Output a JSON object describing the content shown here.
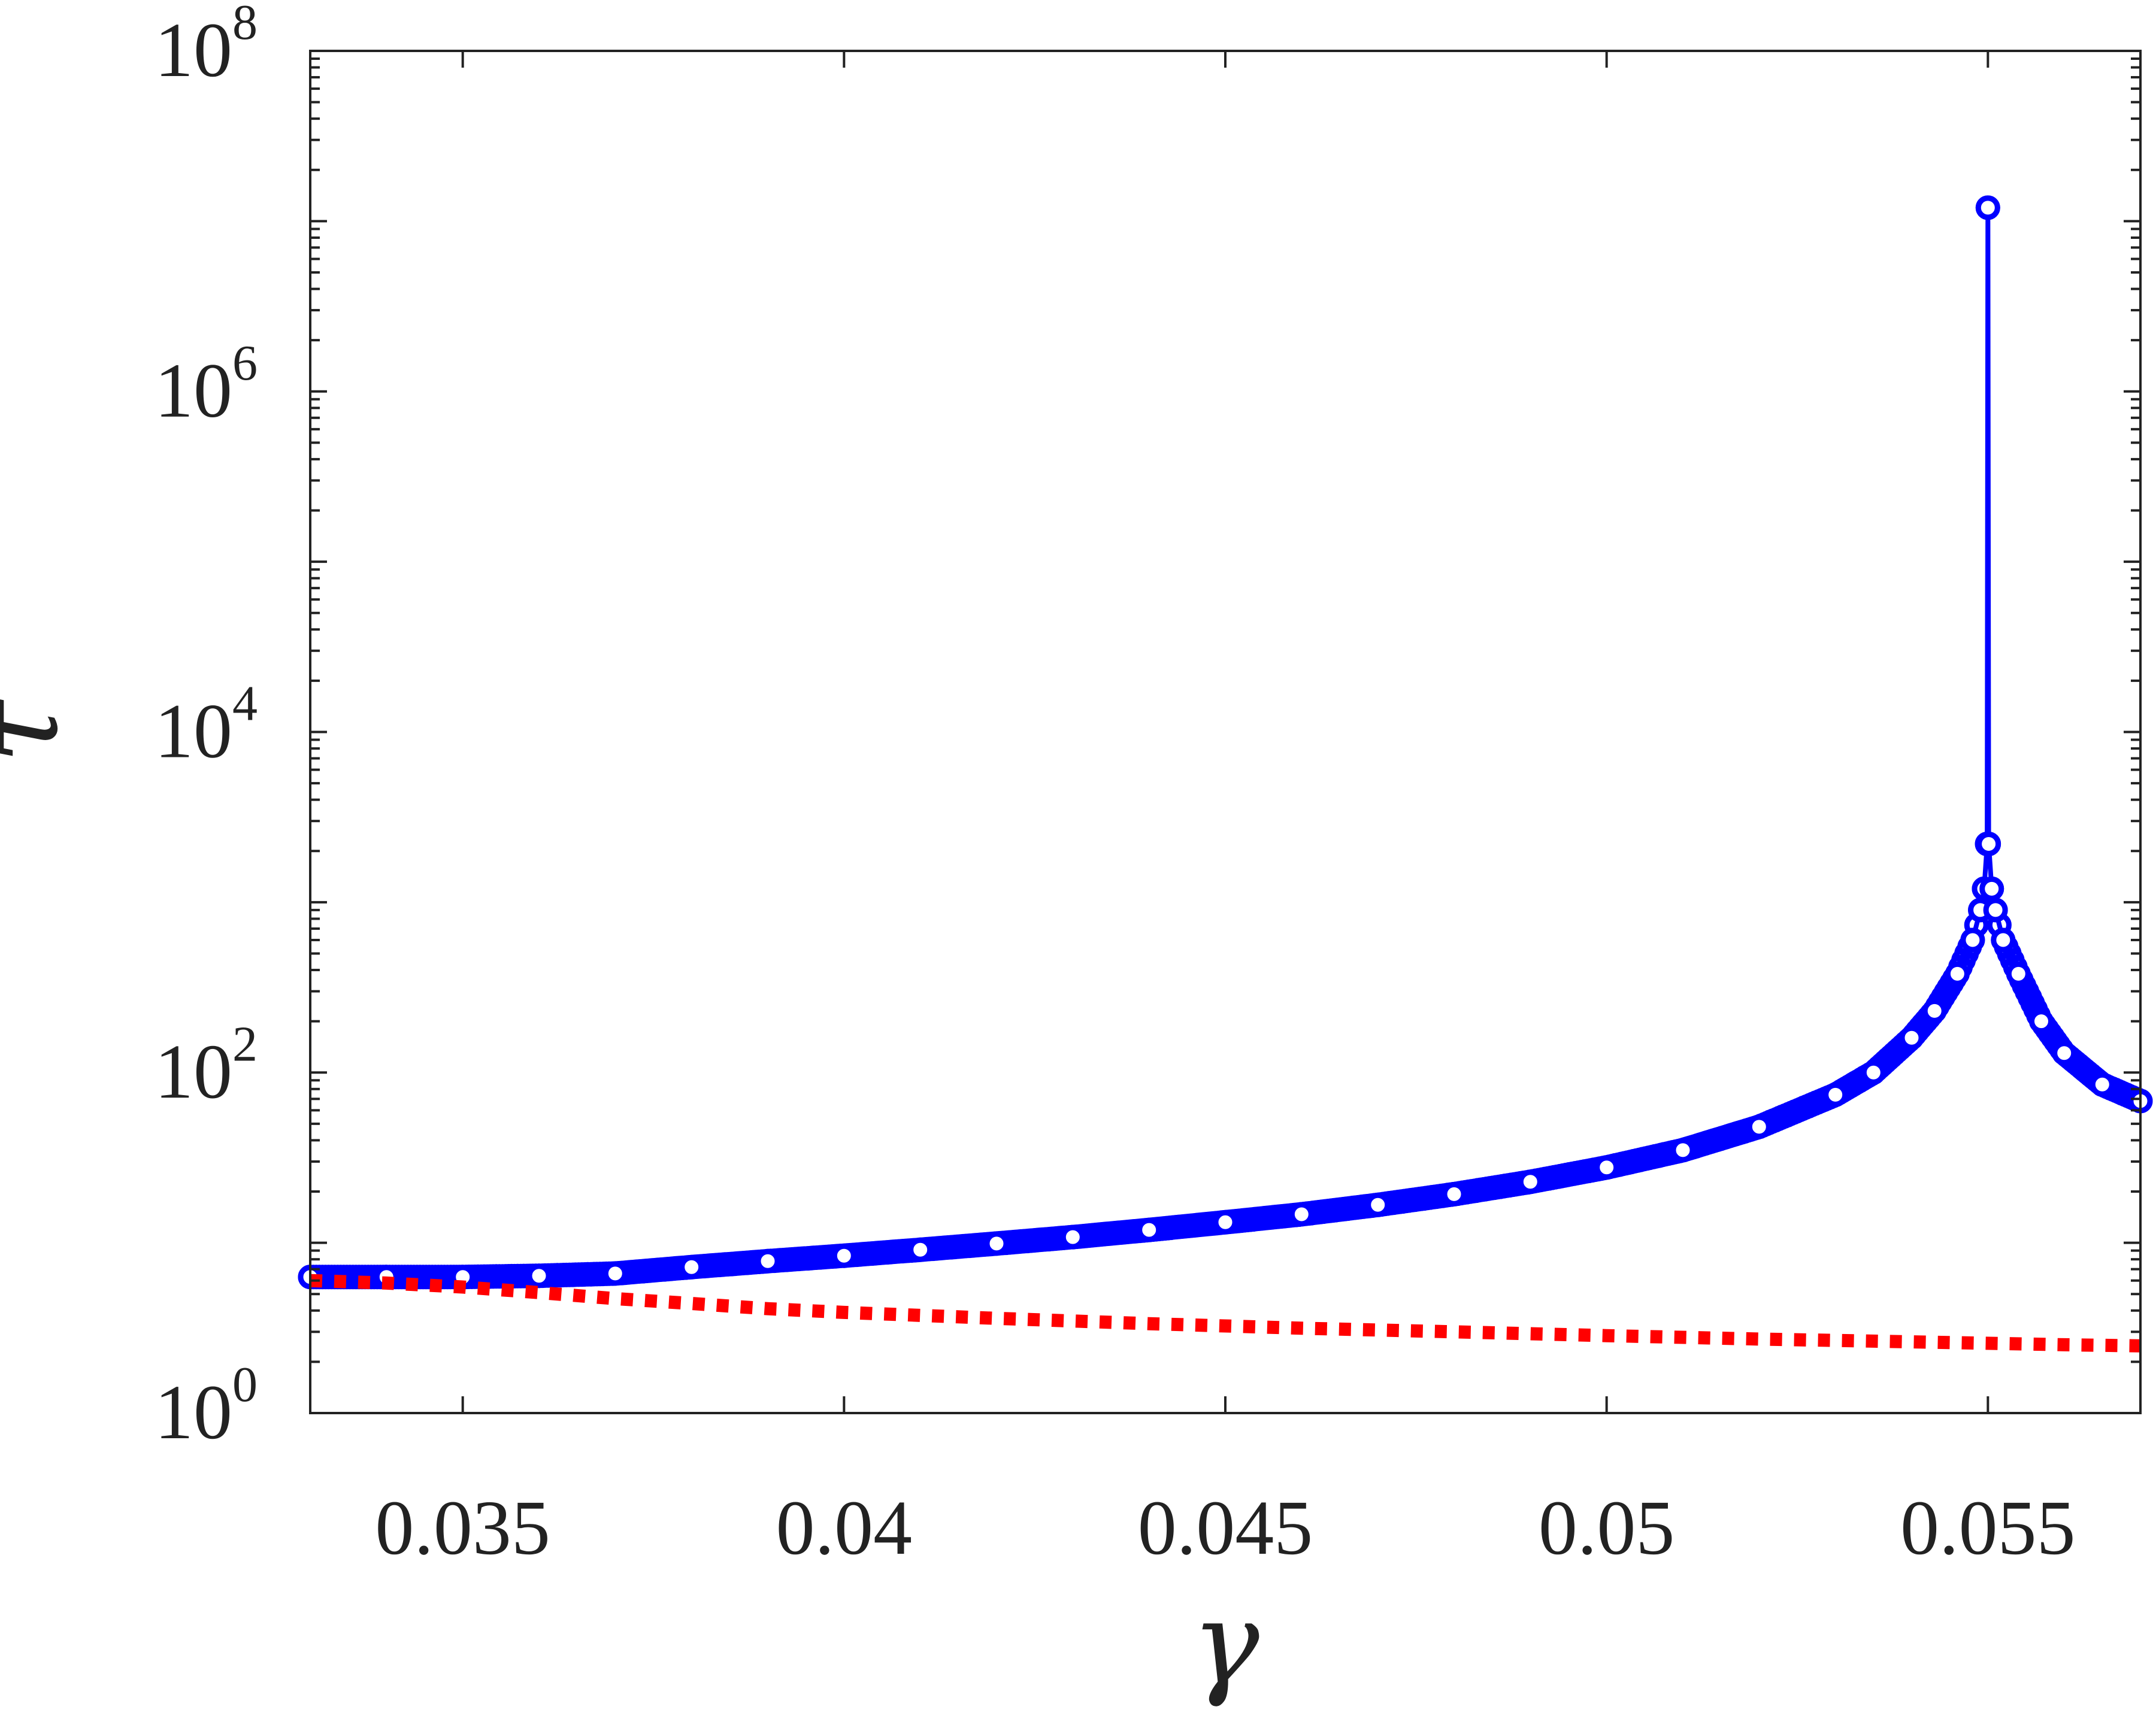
{
  "chart_data": {
    "type": "line",
    "xlabel": "γ",
    "ylabel": "τ",
    "xlim": [
      0.033,
      0.057
    ],
    "ylim": [
      1,
      100000000
    ],
    "yscale": "log",
    "grid": false,
    "legend": "none",
    "x_ticks": [
      0.035,
      0.04,
      0.045,
      0.05,
      0.055
    ],
    "x_tick_labels": [
      "0.035",
      "0.04",
      "0.045",
      "0.05",
      "0.055"
    ],
    "y_ticks": [
      1,
      100,
      10000,
      1000000,
      100000000
    ],
    "y_tick_labels": [
      {
        "base": "10",
        "exp": "0"
      },
      {
        "base": "10",
        "exp": "2"
      },
      {
        "base": "10",
        "exp": "4"
      },
      {
        "base": "10",
        "exp": "6"
      },
      {
        "base": "10",
        "exp": "8"
      }
    ],
    "series": [
      {
        "color": "#0000ff",
        "line_style": "solid",
        "marker": "open-circle",
        "x": [
          0.033,
          0.034,
          0.035,
          0.036,
          0.037,
          0.038,
          0.039,
          0.04,
          0.041,
          0.042,
          0.043,
          0.044,
          0.045,
          0.046,
          0.047,
          0.048,
          0.049,
          0.05,
          0.051,
          0.052,
          0.053,
          0.0535,
          0.054,
          0.0543,
          0.0546,
          0.0548,
          0.0549,
          0.05495,
          0.05499,
          0.055,
          0.05501,
          0.05505,
          0.0551,
          0.0552,
          0.0554,
          0.0557,
          0.056,
          0.0565,
          0.057
        ],
        "y": [
          6.3,
          6.3,
          6.3,
          6.4,
          6.6,
          7.2,
          7.8,
          8.4,
          9.1,
          9.9,
          10.8,
          11.9,
          13.2,
          14.7,
          16.7,
          19.3,
          22.8,
          27.7,
          35,
          48,
          74,
          100,
          160,
          230,
          380,
          600,
          900,
          1200,
          2200,
          12000000,
          2200,
          1200,
          900,
          600,
          380,
          200,
          130,
          85,
          68
        ]
      },
      {
        "color": "#ff0000",
        "line_style": "dotted",
        "marker": "none",
        "x": [
          0.033,
          0.034,
          0.035,
          0.036,
          0.037,
          0.038,
          0.039,
          0.04,
          0.042,
          0.044,
          0.046,
          0.048,
          0.05,
          0.052,
          0.054,
          0.056,
          0.057
        ],
        "y": [
          6.0,
          5.8,
          5.5,
          5.1,
          4.7,
          4.4,
          4.1,
          3.9,
          3.6,
          3.35,
          3.15,
          3.0,
          2.85,
          2.72,
          2.62,
          2.52,
          2.48
        ]
      }
    ]
  }
}
